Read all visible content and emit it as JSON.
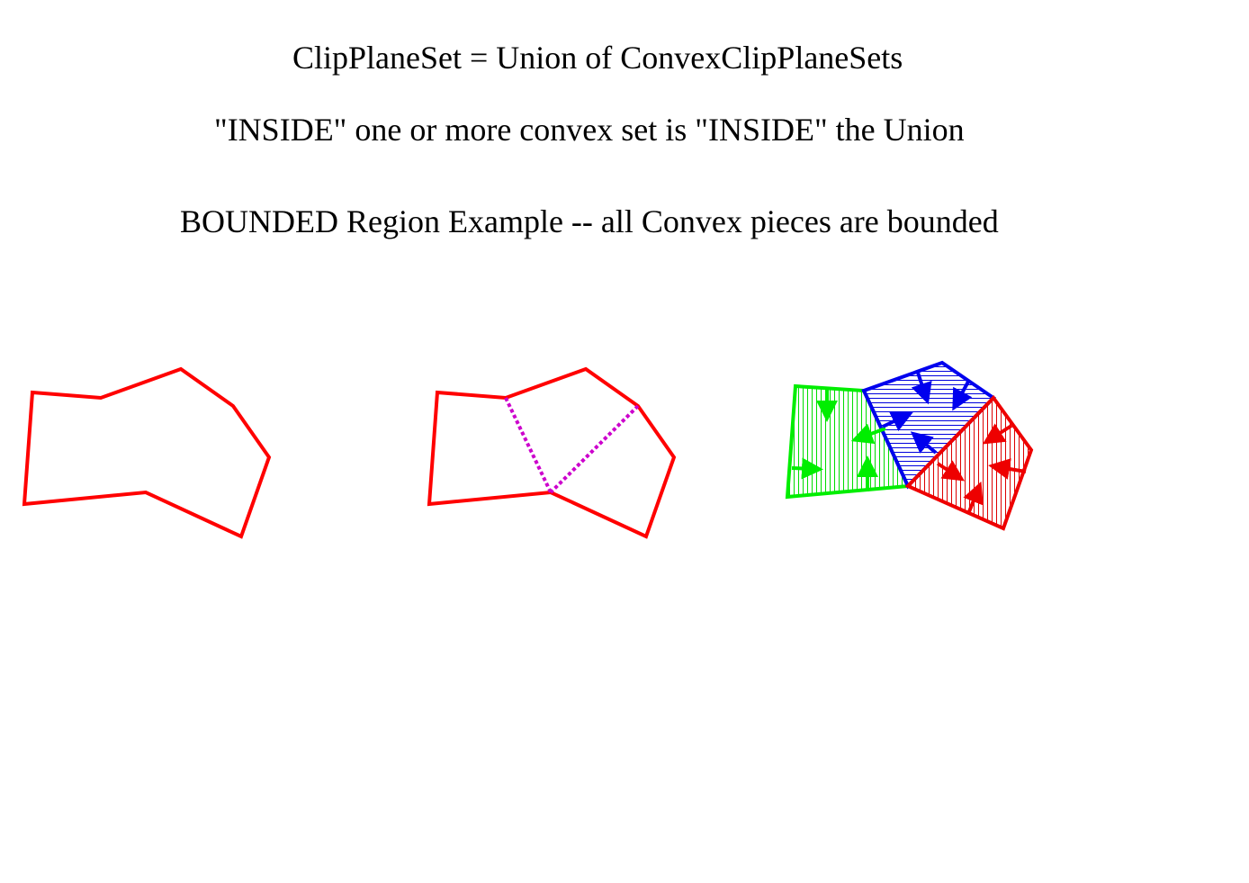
{
  "headings": {
    "line1": "ClipPlaneSet = Union of ConvexClipPlaneSets",
    "line2": "\"INSIDE\" one or more convex set is \"INSIDE\" the Union",
    "line3": "BOUNDED Region Example -- all Convex pieces are bounded"
  },
  "colors": {
    "outline": "#ff0000",
    "split": "#cc00cc",
    "piece_left": "#00ee00",
    "piece_top": "#0000ee",
    "piece_right": "#ee0000"
  },
  "panels": {
    "left": "outline-only-region",
    "middle": "region-with-split-lines",
    "right": "convex-pieces-with-inward-arrows"
  }
}
